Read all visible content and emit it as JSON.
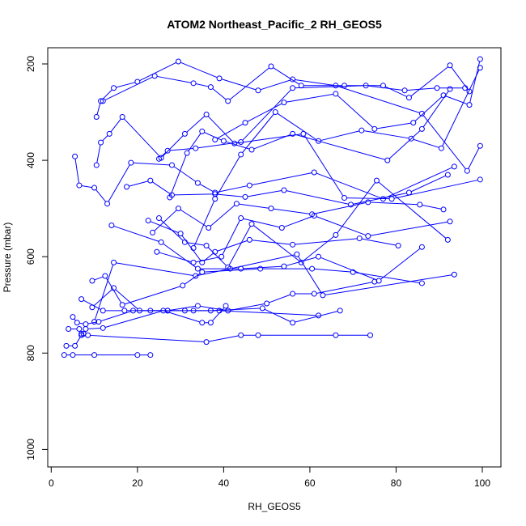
{
  "chart_data": {
    "type": "line",
    "title": "ATOM2 Northeast_Pacific_2 RH_GEOS5",
    "xlabel": "RH_GEOS5",
    "ylabel": "Pressure (mbar)",
    "xlim": [
      0,
      100
    ],
    "ylim": [
      1000,
      200
    ],
    "y_inverted": true,
    "x_ticks": [
      "0",
      "20",
      "40",
      "60",
      "80",
      "100"
    ],
    "y_ticks": [
      "200",
      "400",
      "600",
      "800",
      "1000"
    ],
    "grid": false,
    "legend": "none",
    "series_color": "#0000ff",
    "point_style": "open-circle",
    "profiles": [
      {
        "x": [
          3,
          5,
          10,
          20,
          23
        ],
        "y": [
          804,
          804,
          804,
          804,
          804
        ]
      },
      {
        "x": [
          3.5,
          5.5,
          7,
          8.5,
          36,
          44,
          48,
          66,
          74
        ],
        "y": [
          785,
          785,
          763,
          763,
          777,
          763,
          763,
          763,
          763
        ]
      },
      {
        "x": [
          4,
          6.5,
          7,
          7.5,
          8,
          12,
          26,
          35,
          37,
          40.5
        ],
        "y": [
          750,
          750,
          760,
          760,
          750,
          748,
          712,
          737,
          737,
          702
        ]
      },
      {
        "x": [
          5,
          6,
          8,
          11,
          19,
          27,
          33,
          39,
          62
        ],
        "y": [
          725,
          737,
          740,
          735,
          712,
          712,
          712,
          712,
          722
        ]
      },
      {
        "x": [
          7,
          12,
          17,
          23,
          31,
          37,
          49,
          56,
          67
        ],
        "y": [
          688,
          712,
          712,
          712,
          712,
          712,
          707,
          737,
          712
        ]
      },
      {
        "x": [
          9.5,
          14.5,
          20.5,
          27,
          34,
          41,
          50,
          56,
          61,
          75
        ],
        "y": [
          705,
          665,
          712,
          712,
          702,
          712,
          697,
          677,
          677,
          652
        ]
      },
      {
        "x": [
          9.5,
          12.5,
          16.5,
          30.5,
          35,
          48.5,
          60.5,
          70,
          86
        ],
        "y": [
          650,
          640,
          700,
          660,
          632,
          625,
          625,
          632,
          655
        ]
      },
      {
        "x": [
          10,
          14.5,
          33.5,
          41.5,
          57,
          63,
          93.5
        ],
        "y": [
          735,
          612,
          640,
          625,
          595,
          680,
          637
        ]
      },
      {
        "x": [
          14,
          25.5,
          34,
          44,
          54,
          62,
          76,
          86
        ],
        "y": [
          535,
          570,
          625,
          625,
          620,
          600,
          650,
          580
        ]
      },
      {
        "x": [
          22.5,
          30,
          35,
          38,
          46,
          56,
          71.5,
          80.5
        ],
        "y": [
          525,
          552,
          612,
          590,
          565,
          575,
          562,
          577
        ]
      },
      {
        "x": [
          24.5,
          33,
          39.5,
          44,
          53.5,
          61,
          73.5,
          92.5
        ],
        "y": [
          590,
          612,
          600,
          520,
          540,
          515,
          557,
          527
        ]
      },
      {
        "x": [
          25,
          31,
          36,
          41,
          46.5,
          58,
          66,
          75.5,
          92
        ],
        "y": [
          520,
          570,
          577,
          622,
          532,
          612,
          555,
          442,
          565
        ]
      },
      {
        "x": [
          23.5,
          29.5,
          36.5,
          43,
          51,
          60.5,
          73.5,
          85.5,
          91
        ],
        "y": [
          550,
          500,
          540,
          490,
          500,
          512,
          487,
          492,
          502
        ]
      },
      {
        "x": [
          17.5,
          23,
          28,
          38,
          45,
          54,
          69.5,
          83,
          92
        ],
        "y": [
          455,
          442,
          472,
          470,
          476,
          462,
          492,
          467,
          430
        ]
      },
      {
        "x": [
          5.5,
          6.5,
          10,
          13,
          18.5,
          28,
          34,
          38,
          46,
          61,
          77,
          93.5
        ],
        "y": [
          392,
          452,
          457,
          490,
          405,
          410,
          447,
          467,
          452,
          425,
          480,
          413
        ]
      },
      {
        "x": [
          10.5,
          11.5,
          13.5,
          16.5,
          25.5,
          31,
          36,
          42.5,
          58.5,
          68,
          79,
          99.5
        ],
        "y": [
          410,
          363,
          345,
          310,
          395,
          345,
          305,
          365,
          345,
          478,
          480,
          440
        ]
      },
      {
        "x": [
          10.5,
          11.5,
          14.5,
          20,
          29.5,
          39,
          48,
          56,
          66,
          86,
          96.5,
          99.5
        ],
        "y": [
          310,
          277,
          250,
          237,
          195,
          230,
          255,
          232,
          245,
          303,
          422,
          370
        ]
      },
      {
        "x": [
          12,
          24,
          33,
          37,
          41,
          51,
          58,
          68,
          77,
          83,
          92.5,
          97
        ],
        "y": [
          277,
          225,
          240,
          248,
          277,
          205,
          245,
          245,
          245,
          270,
          203,
          257
        ]
      },
      {
        "x": [
          25,
          27,
          33.5,
          44,
          56,
          73,
          82,
          89.5,
          96
        ],
        "y": [
          397,
          380,
          375,
          362,
          250,
          245,
          255,
          250,
          250
        ]
      },
      {
        "x": [
          27.5,
          31.5,
          35,
          40,
          46.5,
          56,
          78,
          86,
          92.5
        ],
        "y": [
          477,
          385,
          340,
          360,
          378,
          345,
          400,
          335,
          252
        ]
      },
      {
        "x": [
          33,
          38,
          44,
          52,
          62,
          72,
          83.5,
          90.5,
          99.5
        ],
        "y": [
          582,
          480,
          388,
          300,
          360,
          338,
          355,
          375,
          208
        ]
      },
      {
        "x": [
          38,
          45,
          54,
          66,
          75,
          84,
          91,
          97,
          99.5
        ],
        "y": [
          357,
          322,
          280,
          262,
          335,
          322,
          265,
          285,
          190
        ]
      }
    ]
  }
}
